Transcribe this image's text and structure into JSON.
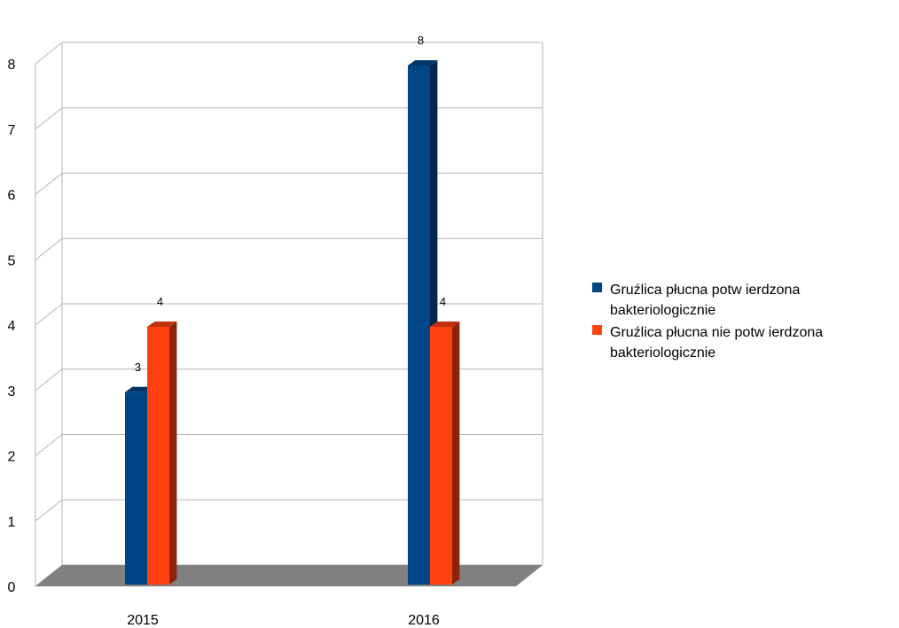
{
  "chart_data": {
    "type": "bar",
    "categories": [
      "2015",
      "2016"
    ],
    "series": [
      {
        "name": "Gruźlica płucna potw ierdzona bakteriologicznie",
        "values": [
          3,
          8
        ],
        "color": "#004586"
      },
      {
        "name": "Gruźlica płucna nie potw ierdzona bakteriologicznie",
        "values": [
          4,
          4
        ],
        "color": "#ff420e"
      }
    ],
    "yticks": [
      "0",
      "1",
      "2",
      "3",
      "4",
      "5",
      "6",
      "7",
      "8"
    ],
    "ylim": [
      0,
      8
    ],
    "data_labels": [
      [
        "3",
        "8"
      ],
      [
        "4",
        "4"
      ]
    ],
    "grid": true,
    "legend_position": "right",
    "style": "3d"
  }
}
